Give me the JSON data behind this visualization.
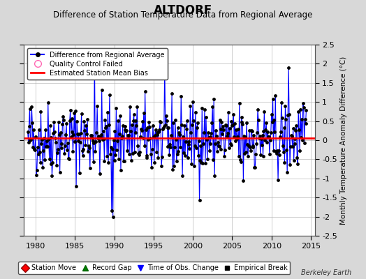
{
  "title": "ALTDORF",
  "subtitle": "Difference of Station Temperature Data from Regional Average",
  "ylabel": "Monthly Temperature Anomaly Difference (°C)",
  "xlim": [
    1978.5,
    2015.5
  ],
  "ylim": [
    -2.5,
    2.5
  ],
  "xticks": [
    1980,
    1985,
    1990,
    1995,
    2000,
    2005,
    2010,
    2015
  ],
  "yticks": [
    -2.5,
    -2,
    -1.5,
    -1,
    -0.5,
    0,
    0.5,
    1,
    1.5,
    2,
    2.5
  ],
  "ytick_labels": [
    "-2.5",
    "-2",
    "-1.5",
    "-1",
    "-0.5",
    "0",
    "0.5",
    "1",
    "1.5",
    "2",
    "2.5"
  ],
  "bias": 0.05,
  "line_color": "#0000FF",
  "bias_color": "#FF0000",
  "dot_color": "#000000",
  "bg_color": "#D8D8D8",
  "plot_bg_color": "#FFFFFF",
  "title_fontsize": 12,
  "subtitle_fontsize": 8.5,
  "label_fontsize": 7.5,
  "tick_fontsize": 8,
  "watermark": "Berkeley Earth",
  "seed": 42,
  "spike_positions": [
    1987.5,
    1989.67,
    1989.83,
    2012.17,
    2006.42
  ],
  "spike_values": [
    2.2,
    -1.85,
    -2.0,
    1.9,
    -1.05
  ]
}
